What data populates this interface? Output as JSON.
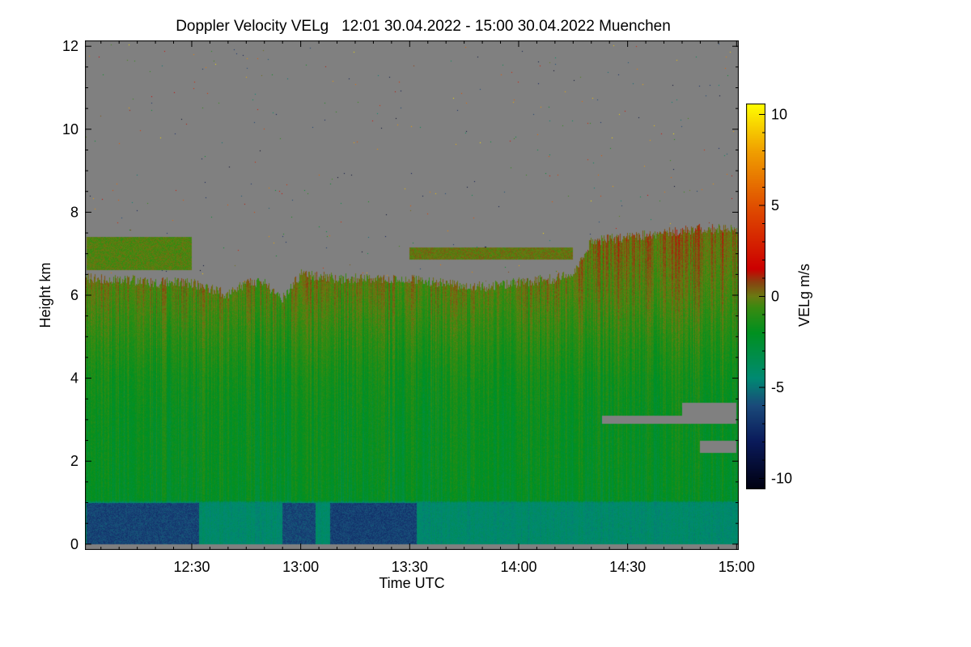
{
  "chart_data": {
    "type": "heatmap",
    "title": "Doppler Velocity VELg   12:01 30.04.2022 - 15:00 30.04.2022 Muenchen",
    "xlabel": "Time UTC",
    "ylabel": "Height km",
    "colorbar_label": "VELg m/s",
    "xlim_minutes_after_1200": [
      1,
      180
    ],
    "ylim": [
      -0.14,
      12.14
    ],
    "clim": [
      -10.6,
      10.6
    ],
    "x_ticks": [
      {
        "v": 30,
        "label": "12:30"
      },
      {
        "v": 60,
        "label": "13:00"
      },
      {
        "v": 90,
        "label": "13:30"
      },
      {
        "v": 120,
        "label": "14:00"
      },
      {
        "v": 150,
        "label": "14:30"
      },
      {
        "v": 180,
        "label": "15:00"
      }
    ],
    "y_ticks": [
      {
        "v": 0,
        "label": "0"
      },
      {
        "v": 2,
        "label": "2"
      },
      {
        "v": 4,
        "label": "4"
      },
      {
        "v": 6,
        "label": "6"
      },
      {
        "v": 8,
        "label": "8"
      },
      {
        "v": 10,
        "label": "10"
      },
      {
        "v": 12,
        "label": "12"
      }
    ],
    "c_ticks": [
      {
        "v": 10,
        "label": "10"
      },
      {
        "v": 5,
        "label": "5"
      },
      {
        "v": 0,
        "label": "0"
      },
      {
        "v": -5,
        "label": "-5"
      },
      {
        "v": -10,
        "label": "-10"
      }
    ],
    "no_signal_color": "#808080",
    "colormap": [
      [
        -10.6,
        "#000010"
      ],
      [
        -8,
        "#0a1a5a"
      ],
      [
        -6,
        "#1a4a7a"
      ],
      [
        -4.5,
        "#008a72"
      ],
      [
        -2,
        "#009020"
      ],
      [
        -0.6,
        "#3a8a10"
      ],
      [
        0,
        "#6a7a12"
      ],
      [
        0.8,
        "#8a4010"
      ],
      [
        1.5,
        "#cc0000"
      ],
      [
        5,
        "#e05000"
      ],
      [
        8,
        "#f0a000"
      ],
      [
        10.6,
        "#ffff00"
      ]
    ],
    "cloud_top_km": {
      "time_min": [
        1,
        10,
        20,
        30,
        40,
        45,
        50,
        55,
        60,
        70,
        80,
        90,
        100,
        110,
        120,
        130,
        135,
        140,
        150,
        160,
        170,
        180
      ],
      "height": [
        6.4,
        6.4,
        6.3,
        6.3,
        6.0,
        6.3,
        6.3,
        5.9,
        6.5,
        6.4,
        6.4,
        6.4,
        6.3,
        6.2,
        6.3,
        6.4,
        6.5,
        7.3,
        7.4,
        7.5,
        7.6,
        7.6
      ]
    },
    "upper_layers": [
      {
        "t0": 1,
        "t1": 30,
        "base_km": 6.6,
        "top_km": 7.4,
        "velocity": -0.3
      },
      {
        "t0": 90,
        "t1": 135,
        "base_km": 6.85,
        "top_km": 7.15,
        "velocity": 0
      }
    ],
    "velocity_profile": {
      "height_km": [
        0,
        1,
        1.05,
        2,
        3,
        4,
        5,
        6,
        7,
        7.6
      ],
      "velocity": [
        -4.3,
        -4.3,
        -2.2,
        -2.0,
        -1.9,
        -1.6,
        -1.0,
        -0.3,
        0.2,
        0.4
      ]
    },
    "boundary_layer_downdrafts": [
      {
        "t0": 1,
        "t1": 32,
        "velocity": -6.3
      },
      {
        "t0": 55,
        "t1": 64,
        "velocity": -6.2
      },
      {
        "t0": 68,
        "t1": 92,
        "velocity": -6.4
      }
    ],
    "gaps": [
      {
        "t0": 143,
        "t1": 165,
        "base_km": 2.9,
        "top_km": 3.1
      },
      {
        "t0": 165,
        "t1": 180,
        "base_km": 2.9,
        "top_km": 3.4
      },
      {
        "t0": 170,
        "t1": 180,
        "base_km": 2.2,
        "top_km": 2.5
      }
    ]
  }
}
